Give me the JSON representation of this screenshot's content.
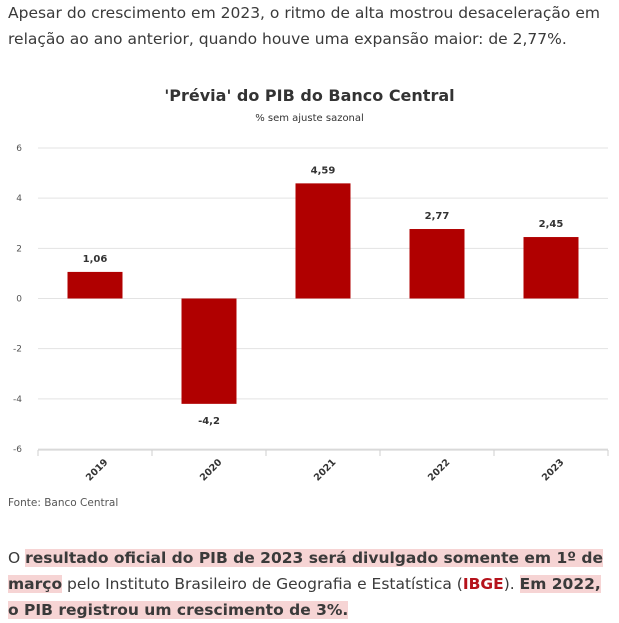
{
  "article": {
    "intro_text": "Apesar do crescimento em 2023, o ritmo de alta mostrou desaceleração em relação ao ano anterior, quando houve uma expansão maior: de 2,77%.",
    "source": "Fonte: Banco Central",
    "outro": {
      "part1": "O ",
      "highlight1": "resultado oficial do PIB de 2023 será divulgado somente em 1º de março",
      "part2": " pelo Instituto Brasileiro de Geografia e Estatística (",
      "org": "IBGE",
      "part3": "). ",
      "highlight2": "Em 2022, o PIB registrou um crescimento de 3%."
    }
  },
  "colors": {
    "bar": "#b00000",
    "highlight_bg": "#f6d4d4",
    "org": "#b5121b",
    "grid": "#e3e3e3"
  },
  "chart_data": {
    "type": "bar",
    "title": "'Prévia' do PIB do Banco Central",
    "subtitle": "% sem ajuste sazonal",
    "categories": [
      "2019",
      "2020",
      "2021",
      "2022",
      "2023"
    ],
    "values": [
      1.06,
      -4.2,
      4.59,
      2.77,
      2.45
    ],
    "value_labels": [
      "1,06",
      "-4,2",
      "4,59",
      "2,77",
      "2,45"
    ],
    "ylim": [
      -6,
      6
    ],
    "yticks": [
      6,
      4,
      2,
      0,
      -2,
      -4,
      -6
    ],
    "ytick_labels": [
      "6",
      "4",
      "2",
      "0",
      "-2",
      "-4",
      "-6"
    ],
    "grid": true,
    "xlabel": "",
    "ylabel": ""
  }
}
